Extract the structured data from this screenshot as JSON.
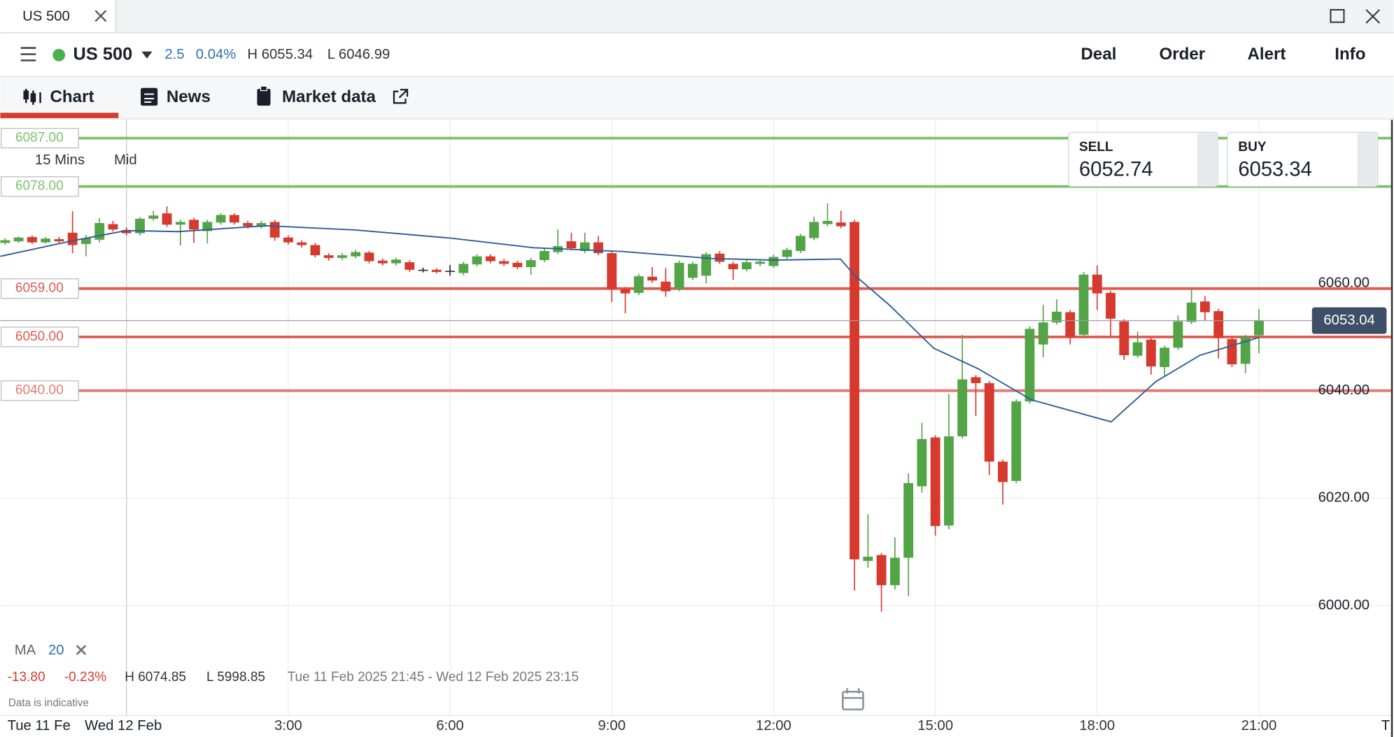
{
  "tab": {
    "title": "US 500"
  },
  "header": {
    "instrument": "US 500",
    "change": "2.5",
    "change_pct": "0.04%",
    "high": "H 6055.34",
    "low": "L 6046.99",
    "actions": [
      "Deal",
      "Order",
      "Alert",
      "Info"
    ]
  },
  "nav": [
    "Chart",
    "News",
    "Market data"
  ],
  "quote": {
    "sell_label": "SELL",
    "sell": "6052.74",
    "buy_label": "BUY",
    "buy": "6053.34"
  },
  "chart_settings": {
    "interval": "15 Mins",
    "price_type": "Mid"
  },
  "indicator": {
    "name": "MA",
    "period": "20"
  },
  "summary": {
    "change": "-13.80",
    "change_pct": "-0.23%",
    "high": "H 6074.85",
    "low": "L 5998.85",
    "range": "Tue 11 Feb 2025 21:45 - Wed 12 Feb 2025 23:15"
  },
  "disclaimer": "Data is indicative",
  "chart_data": {
    "type": "candlestick",
    "x": [
      -2.25,
      -2,
      -1.75,
      -1.5,
      -1.25,
      -1,
      -0.75,
      -0.5,
      -0.25,
      0,
      0.25,
      0.5,
      0.75,
      1,
      1.25,
      1.5,
      1.75,
      2,
      2.25,
      2.5,
      2.75,
      3,
      3.25,
      3.5,
      3.75,
      4,
      4.25,
      4.5,
      4.75,
      5,
      5.25,
      5.5,
      5.75,
      6,
      6.25,
      6.5,
      6.75,
      7,
      7.25,
      7.5,
      7.75,
      8,
      8.25,
      8.5,
      8.75,
      9,
      9.25,
      9.5,
      9.75,
      10,
      10.25,
      10.5,
      10.75,
      11,
      11.25,
      11.5,
      11.75,
      12,
      12.25,
      12.5,
      12.75,
      13,
      13.25,
      13.5,
      13.75,
      14,
      14.25,
      14.5,
      14.75,
      15,
      15.25,
      15.5,
      15.75,
      16,
      16.25,
      16.5,
      16.75,
      17,
      17.25,
      17.5,
      17.75,
      18,
      18.25,
      18.5,
      18.75,
      19,
      19.25,
      19.5,
      19.75,
      20,
      20.25,
      20.5,
      20.75,
      21
    ],
    "open": [
      6067.5,
      6067.8,
      6068.6,
      6067.6,
      6068.2,
      6069.4,
      6067.3,
      6068.1,
      6071.0,
      6069.9,
      6069.3,
      6072.0,
      6073.0,
      6070.9,
      6071.8,
      6069.7,
      6071.3,
      6072.7,
      6071.2,
      6070.5,
      6071.4,
      6068.5,
      6067.6,
      6067.1,
      6065.2,
      6064.7,
      6065.0,
      6065.7,
      6064.2,
      6063.7,
      6063.9,
      6062.5,
      6062.5,
      6062.3,
      6061.9,
      6063.5,
      6065.0,
      6064.1,
      6063.8,
      6063.0,
      6064.3,
      6065.8,
      6067.8,
      6066.0,
      6067.6,
      6065.6,
      6058.9,
      6058.2,
      6061.2,
      6060.3,
      6058.9,
      6061.0,
      6061.4,
      6065.5,
      6063.6,
      6062.6,
      6063.6,
      6063.2,
      6064.9,
      6066.0,
      6068.4,
      6071.0,
      6071.3,
      6071.4,
      6008.3,
      6009.4,
      6003.8,
      6008.9,
      6022.2,
      6031.3,
      6014.9,
      6031.5,
      6042.5,
      6041.4,
      6026.8,
      6023.2,
      6038.0,
      6048.6,
      6052.7,
      6054.6,
      6050.4,
      6061.6,
      6058.2,
      6052.9,
      6046.5,
      6049.5,
      6044.4,
      6048.0,
      6052.8,
      6056.6,
      6054.8,
      6049.6,
      6045.0,
      6050.3
    ],
    "high": [
      6068.4,
      6068.7,
      6068.9,
      6068.6,
      6068.6,
      6073.4,
      6069.0,
      6072.1,
      6071.6,
      6070.4,
      6072.3,
      6073.5,
      6074.3,
      6071.8,
      6072.2,
      6071.8,
      6073.0,
      6073.0,
      6071.6,
      6071.6,
      6071.8,
      6068.9,
      6068.0,
      6067.5,
      6065.6,
      6065.6,
      6066.2,
      6066.0,
      6064.6,
      6064.8,
      6064.3,
      6062.9,
      6062.8,
      6063.4,
      6064.0,
      6065.4,
      6065.4,
      6064.5,
      6064.2,
      6064.7,
      6066.4,
      6070.0,
      6069.4,
      6069.4,
      6068.8,
      6066.0,
      6059.3,
      6061.7,
      6063.0,
      6062.8,
      6064.2,
      6064.0,
      6065.8,
      6066.0,
      6064.0,
      6064.3,
      6064.4,
      6065.3,
      6066.6,
      6069.2,
      6072.4,
      6074.85,
      6073.5,
      6071.8,
      6017.0,
      6009.8,
      6012.7,
      6024.6,
      6034.0,
      6031.7,
      6039.4,
      6050.4,
      6042.9,
      6041.8,
      6027.2,
      6038.4,
      6052.0,
      6056.0,
      6057.0,
      6055.0,
      6062.1,
      6063.3,
      6058.6,
      6053.3,
      6051.0,
      6049.9,
      6048.4,
      6054.0,
      6059.0,
      6057.6,
      6055.2,
      6050.0,
      6050.4,
      6055.2
    ],
    "low": [
      6067.2,
      6067.5,
      6067.3,
      6067.4,
      6067.5,
      6065.6,
      6065.0,
      6067.6,
      6069.6,
      6068.9,
      6068.9,
      6071.6,
      6070.5,
      6067.0,
      6067.5,
      6067.4,
      6070.9,
      6070.9,
      6070.2,
      6070.2,
      6067.9,
      6067.2,
      6066.6,
      6064.8,
      6064.2,
      6064.3,
      6064.6,
      6063.7,
      6063.3,
      6063.3,
      6062.1,
      6062.0,
      6061.8,
      6061.4,
      6061.5,
      6063.1,
      6063.7,
      6063.2,
      6062.6,
      6061.6,
      6063.9,
      6065.4,
      6066.1,
      6065.6,
      6065.2,
      6056.5,
      6054.4,
      6057.8,
      6060.1,
      6057.5,
      6058.5,
      6060.6,
      6060.0,
      6063.6,
      6060.6,
      6062.2,
      6063.2,
      6062.8,
      6064.5,
      6065.6,
      6068.0,
      6070.6,
      6070.2,
      6002.8,
      6007.0,
      5998.85,
      6003.0,
      6001.8,
      6021.0,
      6013.0,
      6014.2,
      6031.1,
      6035.3,
      6024.3,
      6018.8,
      6022.8,
      6037.6,
      6046.2,
      6052.3,
      6048.6,
      6050.0,
      6055.0,
      6050.0,
      6045.7,
      6046.1,
      6043.0,
      6042.7,
      6047.6,
      6052.4,
      6053.0,
      6046.0,
      6044.4,
      6043.2,
      6047.0
    ],
    "close": [
      6068.0,
      6068.5,
      6067.6,
      6068.3,
      6067.8,
      6067.1,
      6068.4,
      6071.2,
      6070.0,
      6069.3,
      6072.0,
      6072.6,
      6070.9,
      6071.4,
      6070.0,
      6071.4,
      6072.7,
      6071.3,
      6070.6,
      6071.2,
      6068.5,
      6067.6,
      6067.1,
      6065.2,
      6064.7,
      6065.2,
      6065.8,
      6064.1,
      6063.7,
      6064.4,
      6062.5,
      6062.5,
      6062.1,
      6062.3,
      6063.6,
      6065.0,
      6064.1,
      6063.6,
      6063.0,
      6064.3,
      6066.0,
      6066.9,
      6066.5,
      6067.6,
      6065.6,
      6058.9,
      6058.1,
      6061.3,
      6060.5,
      6058.5,
      6063.8,
      6063.6,
      6065.4,
      6064.0,
      6062.6,
      6063.9,
      6064.0,
      6064.9,
      6066.2,
      6068.8,
      6071.4,
      6071.6,
      6070.6,
      6008.6,
      6009.1,
      6003.8,
      6008.9,
      6022.8,
      6031.0,
      6014.8,
      6031.5,
      6042.1,
      6041.4,
      6026.8,
      6023.0,
      6038.0,
      6051.5,
      6052.7,
      6054.7,
      6050.0,
      6061.6,
      6058.1,
      6053.4,
      6046.6,
      6049.0,
      6044.5,
      6048.0,
      6052.9,
      6056.4,
      6054.6,
      6049.8,
      6044.9,
      6050.0,
      6053.0
    ],
    "up_color": "#52a447",
    "down_color": "#d63a2f",
    "neutral_color": "#222222",
    "ma": {
      "color": "#2f5d9a",
      "x": [
        -2.34,
        -1.0,
        0,
        0.96,
        2.6,
        4.25,
        6.0,
        7.55,
        9.2,
        10.85,
        12.0,
        13.24,
        13.5,
        14.14,
        14.97,
        15.79,
        16.78,
        18.26,
        19.09,
        19.91,
        21.0
      ],
      "values": [
        6065.0,
        6067.9,
        6069.8,
        6069.6,
        6070.7,
        6069.9,
        6068.4,
        6066.6,
        6065.9,
        6064.6,
        6064.3,
        6064.5,
        6061.5,
        6056.0,
        6047.9,
        6044.1,
        6038.3,
        6034.2,
        6041.7,
        6046.6,
        6049.9
      ]
    },
    "levels": [
      {
        "value": 6087,
        "label": "6087.00",
        "color": "#7dc36b"
      },
      {
        "value": 6078,
        "label": "6078.00",
        "color": "#7dc36b"
      },
      {
        "value": 6059,
        "label": "6059.00",
        "color": "#e05a52"
      },
      {
        "value": 6050,
        "label": "6050.00",
        "color": "#e05a52"
      },
      {
        "value": 6040,
        "label": "6040.00",
        "color": "#e57872"
      }
    ],
    "last_price": {
      "value": 6053.04,
      "label": "6053.04",
      "color": "#3d4f66"
    },
    "xlim": [
      -2.34,
      23.45
    ],
    "ylim": [
      5980.5,
      6090.4
    ],
    "xticks": [
      {
        "value": 3,
        "label": "3:00"
      },
      {
        "value": 6,
        "label": "6:00"
      },
      {
        "value": 9,
        "label": "9:00"
      },
      {
        "value": 12,
        "label": "12:00"
      },
      {
        "value": 15,
        "label": "15:00"
      },
      {
        "value": 18,
        "label": "18:00"
      },
      {
        "value": 21,
        "label": "21:00"
      }
    ],
    "yticks": [
      {
        "value": 6000,
        "label": "6000.00"
      },
      {
        "value": 6020,
        "label": "6020.00"
      },
      {
        "value": 6040,
        "label": "6040.00"
      },
      {
        "value": 6060,
        "label": "6060.00"
      }
    ],
    "x_edge_labels": [
      "Tue 11 Fe",
      "Wed 12 Feb",
      "T"
    ],
    "grid": true
  }
}
